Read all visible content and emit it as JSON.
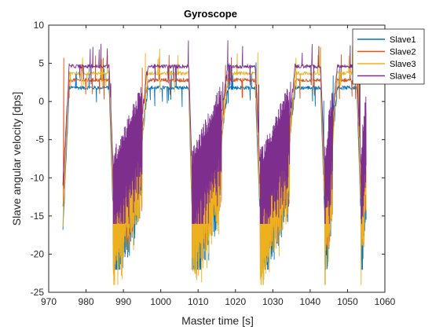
{
  "chart_data": {
    "type": "line",
    "title": "Gyroscope",
    "xlabel": "Master time [s]",
    "ylabel": "Slave angular velocity [dps]",
    "xlim": [
      970,
      1060
    ],
    "ylim": [
      -25,
      10
    ],
    "xticks": [
      970,
      980,
      990,
      1000,
      1010,
      1020,
      1030,
      1040,
      1050,
      1060
    ],
    "yticks": [
      -25,
      -20,
      -15,
      -10,
      -5,
      0,
      5,
      10
    ],
    "grid": false,
    "legend_position": "top-right",
    "cycles": [
      {
        "t0": 973.8,
        "t1": 975.5,
        "t2": 986.2,
        "t3": 987.2,
        "t4": 995.0
      },
      {
        "t0": 995.0,
        "t1": 996.5,
        "t2": 1007.5,
        "t3": 1008.3,
        "t4": 1016.2
      },
      {
        "t0": 1016.2,
        "t1": 1018.0,
        "t2": 1025.3,
        "t3": 1026.5,
        "t4": 1034.5
      },
      {
        "t0": 1034.5,
        "t1": 1036.0,
        "t2": 1042.8,
        "t3": 1043.8,
        "t4": 1046.0
      },
      {
        "t0": 1046.0,
        "t1": 1047.2,
        "t2": 1052.5,
        "t3": 1053.5,
        "t4": 1055.0
      }
    ],
    "series": [
      {
        "name": "Slave1",
        "color": "#0072BD",
        "plateau": 1.8,
        "low_start": -17,
        "low_end": -5,
        "min_dip": -22
      },
      {
        "name": "Slave2",
        "color": "#D95319",
        "plateau": 2.8,
        "low_start": -14,
        "low_end": -4,
        "min_dip": -19
      },
      {
        "name": "Slave3",
        "color": "#EDB120",
        "plateau": 3.7,
        "low_start": -16,
        "low_end": -6,
        "min_dip": -24
      },
      {
        "name": "Slave4",
        "color": "#7E2F8E",
        "plateau": 4.6,
        "low_start": -11,
        "low_end": -2,
        "min_dip": -16
      }
    ]
  }
}
